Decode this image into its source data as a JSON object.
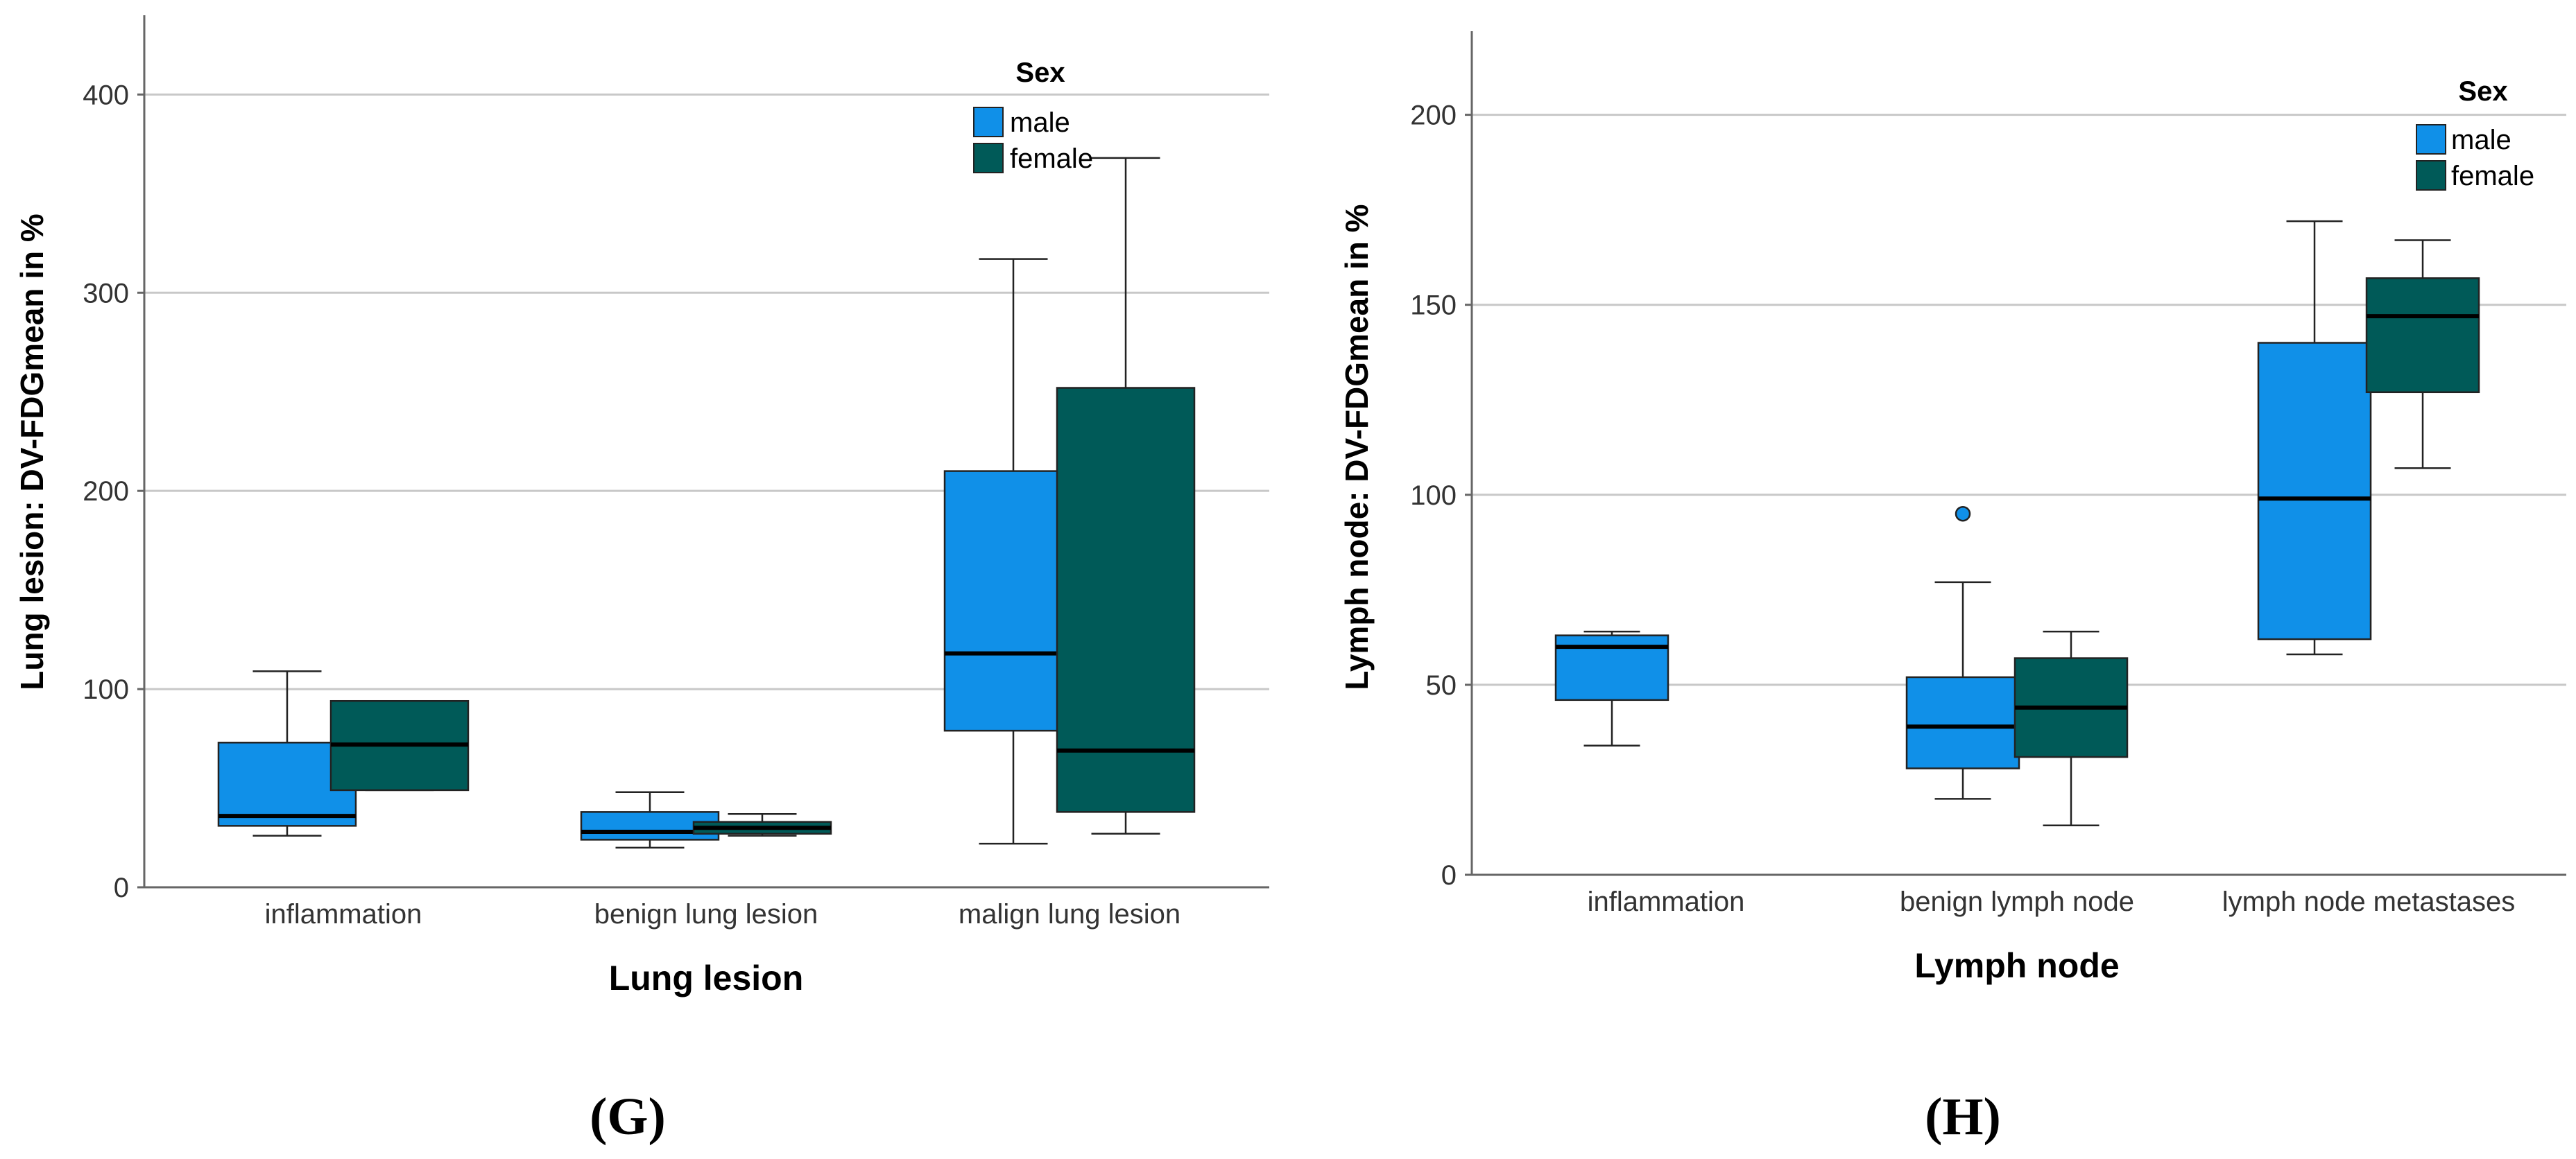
{
  "chart_data": [
    {
      "type": "box",
      "panel_label": "(G)",
      "xlabel": "Lung lesion",
      "ylabel": "Lung lesion: DV-FDGmean in %",
      "ylim": [
        0,
        440
      ],
      "yticks": [
        "0",
        "100",
        "200",
        "300",
        "400"
      ],
      "grid": "horizontal",
      "legend": {
        "title": "Sex",
        "position": "top-right",
        "entries": [
          "male",
          "female"
        ]
      },
      "colors": {
        "male": "#1090E8",
        "female": "#005A58"
      },
      "categories": [
        "inflammation",
        "benign lung lesion",
        "malign lung lesion"
      ],
      "series": [
        {
          "name": "male",
          "boxes": [
            {
              "min": 26,
              "q1": 31,
              "median": 36,
              "q3": 73,
              "max": 109
            },
            {
              "min": 20,
              "q1": 24,
              "median": 28,
              "q3": 38,
              "max": 48
            },
            {
              "min": 22,
              "q1": 79,
              "median": 118,
              "q3": 210,
              "max": 317
            }
          ]
        },
        {
          "name": "female",
          "boxes": [
            {
              "min": 49,
              "q1": 49,
              "median": 72,
              "q3": 94,
              "max": 94
            },
            {
              "min": 26,
              "q1": 27,
              "median": 30,
              "q3": 33,
              "max": 37
            },
            {
              "min": 27,
              "q1": 38,
              "median": 69,
              "q3": 252,
              "max": 368
            }
          ]
        }
      ]
    },
    {
      "type": "box",
      "panel_label": "(H)",
      "xlabel": "Lymph node",
      "ylabel": "Lymph node: DV-FDGmean in %",
      "ylim": [
        0,
        222
      ],
      "yticks": [
        "0",
        "50",
        "100",
        "150",
        "200"
      ],
      "grid": "horizontal",
      "legend": {
        "title": "Sex",
        "position": "top-right",
        "entries": [
          "male",
          "female"
        ]
      },
      "colors": {
        "male": "#1090E8",
        "female": "#005A58"
      },
      "categories": [
        "inflammation",
        "benign lymph node",
        "lymph node metastases"
      ],
      "series": [
        {
          "name": "male",
          "boxes": [
            {
              "min": 34,
              "q1": 46,
              "median": 60,
              "q3": 63,
              "max": 64
            },
            {
              "min": 20,
              "q1": 28,
              "median": 39,
              "q3": 52,
              "max": 77,
              "outliers": [
                95
              ]
            },
            {
              "min": 58,
              "q1": 62,
              "median": 99,
              "q3": 140,
              "max": 172
            }
          ]
        },
        {
          "name": "female",
          "boxes": [
            null,
            {
              "min": 13,
              "q1": 31,
              "median": 44,
              "q3": 57,
              "max": 64
            },
            {
              "min": 107,
              "q1": 127,
              "median": 147,
              "q3": 157,
              "max": 167
            }
          ]
        }
      ]
    }
  ]
}
